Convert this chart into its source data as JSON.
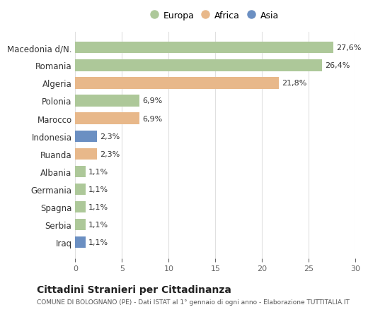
{
  "categories": [
    "Macedonia d/N.",
    "Romania",
    "Algeria",
    "Polonia",
    "Marocco",
    "Indonesia",
    "Ruanda",
    "Albania",
    "Germania",
    "Spagna",
    "Serbia",
    "Iraq"
  ],
  "values": [
    27.6,
    26.4,
    21.8,
    6.9,
    6.9,
    2.3,
    2.3,
    1.1,
    1.1,
    1.1,
    1.1,
    1.1
  ],
  "labels": [
    "27,6%",
    "26,4%",
    "21,8%",
    "6,9%",
    "6,9%",
    "2,3%",
    "2,3%",
    "1,1%",
    "1,1%",
    "1,1%",
    "1,1%",
    "1,1%"
  ],
  "continents": [
    "Europa",
    "Europa",
    "Africa",
    "Europa",
    "Africa",
    "Asia",
    "Africa",
    "Europa",
    "Europa",
    "Europa",
    "Europa",
    "Asia"
  ],
  "colors": {
    "Europa": "#adc899",
    "Africa": "#e8b88a",
    "Asia": "#6b8fc2"
  },
  "legend_labels": [
    "Europa",
    "Africa",
    "Asia"
  ],
  "title1": "Cittadini Stranieri per Cittadinanza",
  "title2": "COMUNE DI BOLOGNANO (PE) - Dati ISTAT al 1° gennaio di ogni anno - Elaborazione TUTTITALIA.IT",
  "xlim": [
    0,
    30
  ],
  "xticks": [
    0,
    5,
    10,
    15,
    20,
    25,
    30
  ],
  "bg_color": "#ffffff",
  "grid_color": "#e0e0e0",
  "bar_height": 0.65
}
